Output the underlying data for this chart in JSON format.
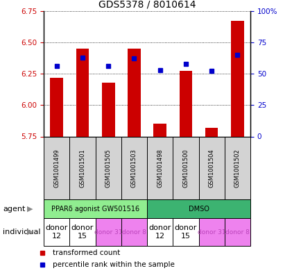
{
  "title": "GDS5378 / 8010614",
  "samples": [
    "GSM1001499",
    "GSM1001501",
    "GSM1001505",
    "GSM1001503",
    "GSM1001498",
    "GSM1001500",
    "GSM1001504",
    "GSM1001502"
  ],
  "transformed_count": [
    6.22,
    6.45,
    6.18,
    6.45,
    5.85,
    6.27,
    5.82,
    6.67
  ],
  "percentile_rank": [
    56,
    63,
    56,
    62,
    53,
    58,
    52,
    65
  ],
  "ylim_left": [
    5.75,
    6.75
  ],
  "ylim_right": [
    0,
    100
  ],
  "yticks_left": [
    5.75,
    6.0,
    6.25,
    6.5,
    6.75
  ],
  "yticks_right": [
    0,
    25,
    50,
    75,
    100
  ],
  "ytick_labels_right": [
    "0",
    "25",
    "50",
    "75",
    "100%"
  ],
  "bar_color": "#cc0000",
  "dot_color": "#0000cc",
  "bar_width": 0.5,
  "agent_labels": [
    "PPARδ agonist GW501516",
    "DMSO"
  ],
  "agent_color_light": "#90EE90",
  "agent_color_dark": "#3cb371",
  "individual_labels": [
    "donor\n12",
    "donor\n15",
    "donor 31",
    "donor 8",
    "donor\n12",
    "donor\n15",
    "donor 31",
    "donor 8"
  ],
  "individual_colors": [
    "#ffffff",
    "#ffffff",
    "#ee82ee",
    "#ee82ee",
    "#ffffff",
    "#ffffff",
    "#ee82ee",
    "#ee82ee"
  ],
  "individual_text_colors": [
    "#000000",
    "#000000",
    "#bb44bb",
    "#bb44bb",
    "#000000",
    "#000000",
    "#bb44bb",
    "#bb44bb"
  ],
  "individual_fontsizes": [
    8,
    8,
    6.5,
    6.5,
    8,
    8,
    6.5,
    6.5
  ],
  "legend_red_label": "transformed count",
  "legend_blue_label": "percentile rank within the sample",
  "ybase": 5.75,
  "sample_box_color": "#d3d3d3",
  "title_fontsize": 10
}
